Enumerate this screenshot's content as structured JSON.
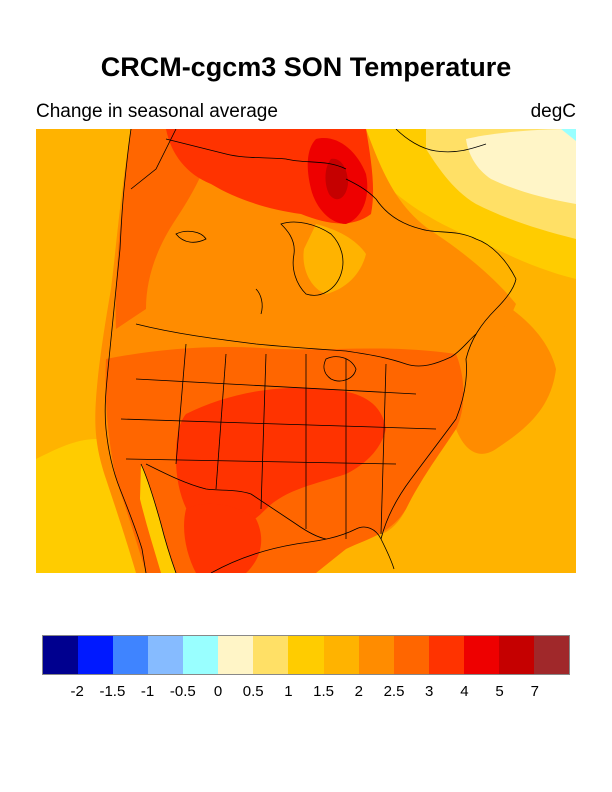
{
  "title": "CRCM-cgcm3 SON Temperature",
  "subtitle_left": "Change in seasonal average",
  "subtitle_right": "degC",
  "map": {
    "variable": "Temperature change",
    "season": "SON",
    "units": "degC",
    "region": "North America",
    "ocean_color": "#FFB300",
    "land_colors": {
      "west_canada": "#FF8C00",
      "arctic_islands": "#FF3300",
      "baffin_core": "#EE0000",
      "central_us": "#FF3300",
      "eastern_us": "#FF6600",
      "hudson_quebec": "#FF8C00",
      "greenland_sea": "#FFCC00",
      "greenland_ice": "#FFF5C7",
      "pacific_south": "#FFCC00",
      "atlantic_north": "#FF8C00"
    }
  },
  "colorbar": {
    "colors": [
      "#00008F",
      "#0019FF",
      "#3F84FF",
      "#86BBFF",
      "#99FFFF",
      "#FFF5C7",
      "#FFE066",
      "#FFCC00",
      "#FFB300",
      "#FF8C00",
      "#FF6600",
      "#FF3300",
      "#EE0000",
      "#C50000",
      "#A0282A"
    ],
    "labels": [
      "-2",
      "-1.5",
      "-1",
      "-0.5",
      "0",
      "0.5",
      "1",
      "1.5",
      "2",
      "2.5",
      "3",
      "4",
      "5",
      "7"
    ]
  }
}
